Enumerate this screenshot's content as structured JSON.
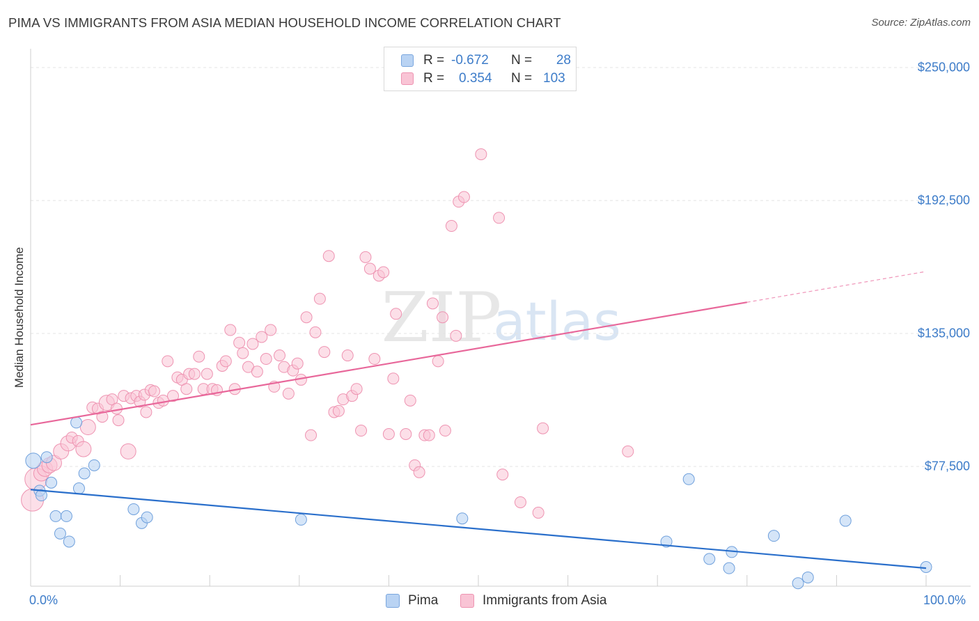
{
  "title": "PIMA VS IMMIGRANTS FROM ASIA MEDIAN HOUSEHOLD INCOME CORRELATION CHART",
  "source": "Source: ZipAtlas.com",
  "watermark": {
    "zip": "ZIP",
    "atlas": "atlas"
  },
  "legend": {
    "rows": [
      {
        "r_label": "R =",
        "r_value": "-0.672",
        "n_label": "N =",
        "n_value": "28"
      },
      {
        "r_label": "R =",
        "r_value": "0.354",
        "n_label": "N =",
        "n_value": "103"
      }
    ]
  },
  "bottom_legend": {
    "pima": "Pima",
    "asia": "Immigrants from Asia"
  },
  "colors": {
    "blue_fill": "#b9d3f3",
    "blue_stroke": "#6fa0dc",
    "blue_line": "#2a6fcb",
    "pink_fill": "#f9c4d5",
    "pink_stroke": "#ee93b1",
    "pink_line": "#e8679a",
    "tick_text": "#3d7cc9",
    "grid": "#e3e3e3"
  },
  "chart_data": {
    "type": "scatter",
    "title": "PIMA VS IMMIGRANTS FROM ASIA MEDIAN HOUSEHOLD INCOME CORRELATION CHART",
    "xlabel": "",
    "ylabel": "Median Household Income",
    "xlim": [
      0,
      100
    ],
    "ylim": [
      20000,
      260000
    ],
    "x_tick_labels": [
      "0.0%",
      "100.0%"
    ],
    "y_ticks": [
      77500,
      135000,
      192500,
      250000
    ],
    "y_tick_labels": [
      "$77,500",
      "$135,000",
      "$192,500",
      "$250,000"
    ],
    "series": [
      {
        "name": "Pima",
        "r": -0.672,
        "n": 28,
        "trend": {
          "x": [
            0,
            100
          ],
          "y": [
            67500,
            33500
          ]
        },
        "points": [
          {
            "x": 0.3,
            "y": 80000,
            "s": 2
          },
          {
            "x": 1.0,
            "y": 67000,
            "s": 1
          },
          {
            "x": 1.2,
            "y": 65000,
            "s": 1
          },
          {
            "x": 1.8,
            "y": 81500,
            "s": 1
          },
          {
            "x": 2.3,
            "y": 70500,
            "s": 1
          },
          {
            "x": 2.8,
            "y": 56000,
            "s": 1
          },
          {
            "x": 3.3,
            "y": 48500,
            "s": 1
          },
          {
            "x": 4.0,
            "y": 56000,
            "s": 1
          },
          {
            "x": 4.3,
            "y": 45000,
            "s": 1
          },
          {
            "x": 5.1,
            "y": 96500,
            "s": 1
          },
          {
            "x": 5.4,
            "y": 68000,
            "s": 1
          },
          {
            "x": 6.0,
            "y": 74500,
            "s": 1
          },
          {
            "x": 7.1,
            "y": 78000,
            "s": 1
          },
          {
            "x": 11.5,
            "y": 59000,
            "s": 1
          },
          {
            "x": 12.4,
            "y": 53000,
            "s": 1
          },
          {
            "x": 13.0,
            "y": 55500,
            "s": 1
          },
          {
            "x": 30.2,
            "y": 54500,
            "s": 1
          },
          {
            "x": 48.2,
            "y": 55000,
            "s": 1
          },
          {
            "x": 71.0,
            "y": 45000,
            "s": 1
          },
          {
            "x": 73.5,
            "y": 72000,
            "s": 1
          },
          {
            "x": 75.8,
            "y": 37500,
            "s": 1
          },
          {
            "x": 78.0,
            "y": 33500,
            "s": 1
          },
          {
            "x": 78.3,
            "y": 40500,
            "s": 1
          },
          {
            "x": 83.0,
            "y": 47500,
            "s": 1
          },
          {
            "x": 85.7,
            "y": 27000,
            "s": 1
          },
          {
            "x": 86.8,
            "y": 29500,
            "s": 1
          },
          {
            "x": 91.0,
            "y": 54000,
            "s": 1
          },
          {
            "x": 100.0,
            "y": 34000,
            "s": 1
          }
        ]
      },
      {
        "name": "Immigrants from Asia",
        "r": 0.354,
        "n": 103,
        "trend": {
          "x": [
            0,
            80
          ],
          "y": [
            95500,
            148500
          ]
        },
        "trend_extension": {
          "x": [
            80,
            100
          ],
          "y": [
            148500,
            161800
          ]
        },
        "points": [
          {
            "x": 0.2,
            "y": 63000,
            "s": 3
          },
          {
            "x": 0.6,
            "y": 72000,
            "s": 3
          },
          {
            "x": 1.2,
            "y": 74500,
            "s": 2
          },
          {
            "x": 1.6,
            "y": 76500,
            "s": 2
          },
          {
            "x": 2.1,
            "y": 78000,
            "s": 2
          },
          {
            "x": 2.6,
            "y": 79000,
            "s": 2
          },
          {
            "x": 3.4,
            "y": 84000,
            "s": 2
          },
          {
            "x": 4.2,
            "y": 87500,
            "s": 2
          },
          {
            "x": 4.6,
            "y": 90000,
            "s": 1
          },
          {
            "x": 5.3,
            "y": 88500,
            "s": 1
          },
          {
            "x": 5.9,
            "y": 85000,
            "s": 2
          },
          {
            "x": 6.4,
            "y": 94500,
            "s": 2
          },
          {
            "x": 6.9,
            "y": 103000,
            "s": 1
          },
          {
            "x": 7.5,
            "y": 102500,
            "s": 1
          },
          {
            "x": 8.0,
            "y": 99000,
            "s": 1
          },
          {
            "x": 8.5,
            "y": 105000,
            "s": 2
          },
          {
            "x": 9.1,
            "y": 106500,
            "s": 1
          },
          {
            "x": 9.6,
            "y": 102500,
            "s": 1
          },
          {
            "x": 9.8,
            "y": 97500,
            "s": 1
          },
          {
            "x": 10.4,
            "y": 108000,
            "s": 1
          },
          {
            "x": 10.9,
            "y": 84000,
            "s": 2
          },
          {
            "x": 11.2,
            "y": 107000,
            "s": 1
          },
          {
            "x": 11.8,
            "y": 108000,
            "s": 1
          },
          {
            "x": 12.2,
            "y": 105500,
            "s": 1
          },
          {
            "x": 12.7,
            "y": 108500,
            "s": 1
          },
          {
            "x": 12.9,
            "y": 101000,
            "s": 1
          },
          {
            "x": 13.4,
            "y": 110500,
            "s": 1
          },
          {
            "x": 13.8,
            "y": 110000,
            "s": 1
          },
          {
            "x": 14.3,
            "y": 105000,
            "s": 1
          },
          {
            "x": 14.8,
            "y": 106000,
            "s": 1
          },
          {
            "x": 15.3,
            "y": 123000,
            "s": 1
          },
          {
            "x": 15.9,
            "y": 108000,
            "s": 1
          },
          {
            "x": 16.4,
            "y": 116000,
            "s": 1
          },
          {
            "x": 16.9,
            "y": 115000,
            "s": 1
          },
          {
            "x": 17.4,
            "y": 111000,
            "s": 1
          },
          {
            "x": 17.7,
            "y": 117500,
            "s": 1
          },
          {
            "x": 18.3,
            "y": 117500,
            "s": 1
          },
          {
            "x": 18.8,
            "y": 125000,
            "s": 1
          },
          {
            "x": 19.3,
            "y": 111000,
            "s": 1
          },
          {
            "x": 19.7,
            "y": 117500,
            "s": 1
          },
          {
            "x": 20.3,
            "y": 111000,
            "s": 1
          },
          {
            "x": 20.8,
            "y": 110500,
            "s": 1
          },
          {
            "x": 21.4,
            "y": 121000,
            "s": 1
          },
          {
            "x": 21.8,
            "y": 123000,
            "s": 1
          },
          {
            "x": 22.3,
            "y": 136500,
            "s": 1
          },
          {
            "x": 22.8,
            "y": 111000,
            "s": 1
          },
          {
            "x": 23.3,
            "y": 131000,
            "s": 1
          },
          {
            "x": 23.7,
            "y": 126500,
            "s": 1
          },
          {
            "x": 24.3,
            "y": 120500,
            "s": 1
          },
          {
            "x": 24.8,
            "y": 130500,
            "s": 1
          },
          {
            "x": 25.3,
            "y": 118500,
            "s": 1
          },
          {
            "x": 25.8,
            "y": 133500,
            "s": 1
          },
          {
            "x": 26.3,
            "y": 124000,
            "s": 1
          },
          {
            "x": 26.8,
            "y": 136500,
            "s": 1
          },
          {
            "x": 27.2,
            "y": 112000,
            "s": 1
          },
          {
            "x": 27.8,
            "y": 125500,
            "s": 1
          },
          {
            "x": 28.3,
            "y": 120500,
            "s": 1
          },
          {
            "x": 28.8,
            "y": 109000,
            "s": 1
          },
          {
            "x": 29.3,
            "y": 119000,
            "s": 1
          },
          {
            "x": 29.8,
            "y": 122000,
            "s": 1
          },
          {
            "x": 30.2,
            "y": 115000,
            "s": 1
          },
          {
            "x": 30.8,
            "y": 142000,
            "s": 1
          },
          {
            "x": 31.3,
            "y": 91000,
            "s": 1
          },
          {
            "x": 31.8,
            "y": 135500,
            "s": 1
          },
          {
            "x": 32.3,
            "y": 150000,
            "s": 1
          },
          {
            "x": 32.8,
            "y": 127000,
            "s": 1
          },
          {
            "x": 33.3,
            "y": 168500,
            "s": 1
          },
          {
            "x": 33.9,
            "y": 101000,
            "s": 1
          },
          {
            "x": 34.4,
            "y": 101500,
            "s": 1
          },
          {
            "x": 34.9,
            "y": 106500,
            "s": 1
          },
          {
            "x": 35.4,
            "y": 125500,
            "s": 1
          },
          {
            "x": 35.9,
            "y": 108000,
            "s": 1
          },
          {
            "x": 36.4,
            "y": 111000,
            "s": 1
          },
          {
            "x": 36.9,
            "y": 93000,
            "s": 1
          },
          {
            "x": 37.4,
            "y": 168000,
            "s": 1
          },
          {
            "x": 37.9,
            "y": 163000,
            "s": 1
          },
          {
            "x": 38.4,
            "y": 124000,
            "s": 1
          },
          {
            "x": 38.9,
            "y": 160000,
            "s": 1
          },
          {
            "x": 39.4,
            "y": 161500,
            "s": 1
          },
          {
            "x": 40.0,
            "y": 91500,
            "s": 1
          },
          {
            "x": 40.5,
            "y": 115500,
            "s": 1
          },
          {
            "x": 40.8,
            "y": 143500,
            "s": 1
          },
          {
            "x": 41.9,
            "y": 91500,
            "s": 1
          },
          {
            "x": 42.4,
            "y": 106000,
            "s": 1
          },
          {
            "x": 42.9,
            "y": 78000,
            "s": 1
          },
          {
            "x": 43.4,
            "y": 75000,
            "s": 1
          },
          {
            "x": 44.0,
            "y": 91000,
            "s": 1
          },
          {
            "x": 44.5,
            "y": 91000,
            "s": 1
          },
          {
            "x": 44.9,
            "y": 148000,
            "s": 1
          },
          {
            "x": 45.5,
            "y": 123000,
            "s": 1
          },
          {
            "x": 46.0,
            "y": 142000,
            "s": 1
          },
          {
            "x": 46.3,
            "y": 93000,
            "s": 1
          },
          {
            "x": 47.0,
            "y": 181500,
            "s": 1
          },
          {
            "x": 47.5,
            "y": 134000,
            "s": 1
          },
          {
            "x": 47.8,
            "y": 192000,
            "s": 1
          },
          {
            "x": 48.4,
            "y": 194000,
            "s": 1
          },
          {
            "x": 50.3,
            "y": 212500,
            "s": 1
          },
          {
            "x": 52.3,
            "y": 185000,
            "s": 1
          },
          {
            "x": 52.7,
            "y": 74000,
            "s": 1
          },
          {
            "x": 54.7,
            "y": 62000,
            "s": 1
          },
          {
            "x": 56.7,
            "y": 57500,
            "s": 1
          },
          {
            "x": 57.2,
            "y": 94000,
            "s": 1
          },
          {
            "x": 66.7,
            "y": 84000,
            "s": 1
          }
        ]
      }
    ]
  }
}
